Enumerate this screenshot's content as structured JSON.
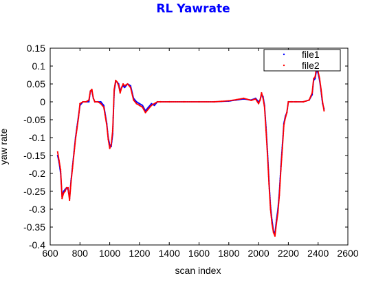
{
  "chart_data": {
    "type": "scatter",
    "title": "RL Yawrate",
    "xlabel": "scan index",
    "ylabel": "yaw rate",
    "xlim": [
      600,
      2600
    ],
    "ylim": [
      -0.4,
      0.15
    ],
    "xticks": [
      "600",
      "800",
      "1000",
      "1200",
      "1400",
      "1600",
      "1800",
      "2000",
      "2200",
      "2400",
      "2600"
    ],
    "yticks": [
      "-0.4",
      "-0.35",
      "-0.3",
      "-0.25",
      "-0.2",
      "-0.15",
      "-0.1",
      "-0.05",
      "0",
      "0.05",
      "0.1",
      "0.15"
    ],
    "legend_position": "top-right",
    "grid": false,
    "series": [
      {
        "name": "file1",
        "color": "#0000ff",
        "x": [
          650,
          660,
          670,
          680,
          690,
          700,
          710,
          720,
          730,
          740,
          750,
          760,
          770,
          780,
          790,
          800,
          820,
          840,
          860,
          870,
          880,
          890,
          900,
          920,
          940,
          960,
          980,
          990,
          1000,
          1010,
          1020,
          1030,
          1040,
          1050,
          1060,
          1070,
          1080,
          1090,
          1100,
          1120,
          1140,
          1160,
          1180,
          1200,
          1220,
          1240,
          1260,
          1280,
          1300,
          1320,
          1340,
          1400,
          1500,
          1600,
          1700,
          1800,
          1850,
          1900,
          1950,
          1980,
          2000,
          2010,
          2020,
          2030,
          2040,
          2050,
          2060,
          2070,
          2080,
          2090,
          2100,
          2110,
          2120,
          2130,
          2140,
          2150,
          2160,
          2170,
          2180,
          2190,
          2200,
          2220,
          2250,
          2300,
          2340,
          2360,
          2370,
          2380,
          2390,
          2400,
          2410,
          2420,
          2430,
          2440
        ],
        "y": [
          -0.15,
          -0.17,
          -0.2,
          -0.265,
          -0.25,
          -0.245,
          -0.24,
          -0.245,
          -0.27,
          -0.22,
          -0.18,
          -0.14,
          -0.1,
          -0.07,
          -0.04,
          -0.01,
          0,
          0,
          0,
          0.03,
          0.03,
          0.01,
          0,
          0,
          0,
          -0.01,
          -0.06,
          -0.1,
          -0.12,
          -0.125,
          -0.09,
          0.03,
          0.055,
          0.055,
          0.05,
          0.03,
          0.04,
          0.045,
          0.04,
          0.05,
          0.045,
          0.01,
          0,
          -0.005,
          -0.01,
          -0.025,
          -0.015,
          -0.005,
          -0.01,
          0,
          0,
          0,
          0,
          0,
          0,
          0.002,
          0.005,
          0.008,
          0.005,
          0.01,
          0,
          0.005,
          0.02,
          0.015,
          -0.01,
          -0.07,
          -0.14,
          -0.22,
          -0.29,
          -0.33,
          -0.36,
          -0.37,
          -0.33,
          -0.3,
          -0.25,
          -0.18,
          -0.12,
          -0.06,
          -0.04,
          -0.03,
          0,
          0,
          0,
          0,
          0.005,
          0.02,
          0.06,
          0.065,
          0.09,
          0.08,
          0.06,
          0.03,
          -0.005,
          -0.02
        ]
      },
      {
        "name": "file2",
        "color": "#ff0000",
        "x": [
          650,
          660,
          670,
          680,
          690,
          700,
          710,
          720,
          730,
          740,
          750,
          760,
          770,
          780,
          790,
          800,
          820,
          840,
          860,
          870,
          880,
          890,
          900,
          920,
          940,
          960,
          980,
          990,
          1000,
          1010,
          1020,
          1030,
          1040,
          1050,
          1060,
          1070,
          1080,
          1090,
          1100,
          1120,
          1140,
          1160,
          1180,
          1200,
          1220,
          1240,
          1260,
          1280,
          1300,
          1320,
          1340,
          1400,
          1500,
          1600,
          1700,
          1800,
          1850,
          1900,
          1950,
          1980,
          2000,
          2010,
          2020,
          2030,
          2040,
          2050,
          2060,
          2070,
          2080,
          2090,
          2100,
          2110,
          2120,
          2130,
          2140,
          2150,
          2160,
          2170,
          2180,
          2190,
          2200,
          2220,
          2250,
          2300,
          2340,
          2360,
          2370,
          2380,
          2390,
          2400,
          2410,
          2420,
          2430,
          2440
        ],
        "y": [
          -0.14,
          -0.165,
          -0.19,
          -0.27,
          -0.255,
          -0.25,
          -0.24,
          -0.24,
          -0.275,
          -0.225,
          -0.185,
          -0.145,
          -0.105,
          -0.075,
          -0.045,
          -0.005,
          0,
          0,
          0.005,
          0.03,
          0.035,
          0.01,
          0,
          0,
          -0.005,
          -0.015,
          -0.065,
          -0.105,
          -0.13,
          -0.12,
          -0.08,
          0.035,
          0.06,
          0.055,
          0.045,
          0.025,
          0.04,
          0.05,
          0.045,
          0.05,
          0.04,
          0.005,
          -0.005,
          -0.01,
          -0.015,
          -0.03,
          -0.02,
          -0.01,
          -0.005,
          0,
          0,
          0,
          0,
          0,
          0,
          0.003,
          0.006,
          0.01,
          0.004,
          0.008,
          -0.005,
          0.005,
          0.025,
          0.01,
          -0.015,
          -0.08,
          -0.15,
          -0.23,
          -0.3,
          -0.34,
          -0.365,
          -0.375,
          -0.34,
          -0.31,
          -0.26,
          -0.19,
          -0.13,
          -0.065,
          -0.045,
          -0.03,
          0,
          0,
          0,
          0,
          0.005,
          0.025,
          0.065,
          0.07,
          0.1,
          0.085,
          0.065,
          0.035,
          0,
          -0.025
        ]
      }
    ]
  }
}
